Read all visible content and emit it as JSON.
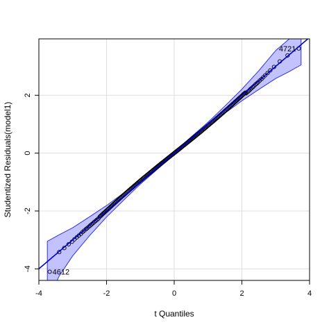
{
  "chart_data": {
    "type": "scatter",
    "subtype": "qq-plot",
    "title": "",
    "xlabel": "t Quantiles",
    "ylabel": "Studentized Residuals(model1)",
    "xlim": [
      -4,
      4
    ],
    "ylim": [
      -4.4,
      3.95
    ],
    "x_ticks": [
      -4,
      -2,
      0,
      2,
      4
    ],
    "y_ticks": [
      -4,
      -2,
      0,
      2
    ],
    "grid": true,
    "reference_line": {
      "intercept": 0.0,
      "slope": 1.0
    },
    "labeled_points": [
      {
        "label": "4721",
        "x": 3.68,
        "y": 3.62
      },
      {
        "label": "4612",
        "x": -3.68,
        "y": -4.1
      }
    ],
    "upper_tail_points": [
      [
        3.35,
        3.38
      ],
      [
        3.12,
        3.17
      ],
      [
        2.95,
        2.98
      ],
      [
        2.84,
        2.86
      ],
      [
        2.76,
        2.77
      ],
      [
        2.69,
        2.69
      ],
      [
        2.63,
        2.62
      ],
      [
        2.58,
        2.56
      ],
      [
        2.53,
        2.51
      ],
      [
        2.48,
        2.45
      ],
      [
        2.44,
        2.41
      ],
      [
        2.4,
        2.37
      ],
      [
        2.36,
        2.32
      ],
      [
        2.32,
        2.28
      ],
      [
        2.28,
        2.24
      ],
      [
        2.25,
        2.21
      ],
      [
        2.22,
        2.17
      ],
      [
        2.18,
        2.13
      ],
      [
        2.15,
        2.1
      ],
      [
        2.12,
        2.07
      ]
    ],
    "lower_tail_points": [
      [
        -3.4,
        -3.42
      ],
      [
        -3.25,
        -3.28
      ],
      [
        -3.12,
        -3.15
      ],
      [
        -3.02,
        -3.06
      ],
      [
        -2.95,
        -2.98
      ],
      [
        -2.88,
        -2.91
      ],
      [
        -2.82,
        -2.85
      ],
      [
        -2.76,
        -2.79
      ],
      [
        -2.71,
        -2.73
      ],
      [
        -2.66,
        -2.68
      ],
      [
        -2.61,
        -2.63
      ],
      [
        -2.57,
        -2.59
      ],
      [
        -2.52,
        -2.54
      ],
      [
        -2.48,
        -2.5
      ],
      [
        -2.44,
        -2.46
      ],
      [
        -2.4,
        -2.42
      ],
      [
        -2.36,
        -2.38
      ],
      [
        -2.32,
        -2.34
      ],
      [
        -2.28,
        -2.3
      ],
      [
        -2.24,
        -2.26
      ]
    ],
    "central_band": {
      "x_from": -2.2,
      "x_to": 2.1,
      "deviation": 0.05
    },
    "confidence_envelope": {
      "x": [
        -3.75,
        -3.4,
        -3.0,
        -2.5,
        -2.0,
        -1.5,
        -1.0,
        0.0,
        1.0,
        1.5,
        2.0,
        2.5,
        3.0,
        3.4,
        3.75
      ],
      "lower": [
        -5.1,
        -4.25,
        -3.55,
        -2.85,
        -2.21,
        -1.63,
        -1.07,
        -0.05,
        0.95,
        1.38,
        1.81,
        2.2,
        2.58,
        2.82,
        3.05
      ],
      "upper": [
        -3.05,
        -2.82,
        -2.58,
        -2.2,
        -1.81,
        -1.38,
        -0.95,
        0.05,
        1.07,
        1.63,
        2.21,
        2.85,
        3.55,
        3.95,
        4.2
      ]
    },
    "colors": {
      "band": "#8f8fff",
      "line": "#0000cc",
      "points": "#000000",
      "grid": "#dddddd"
    }
  }
}
